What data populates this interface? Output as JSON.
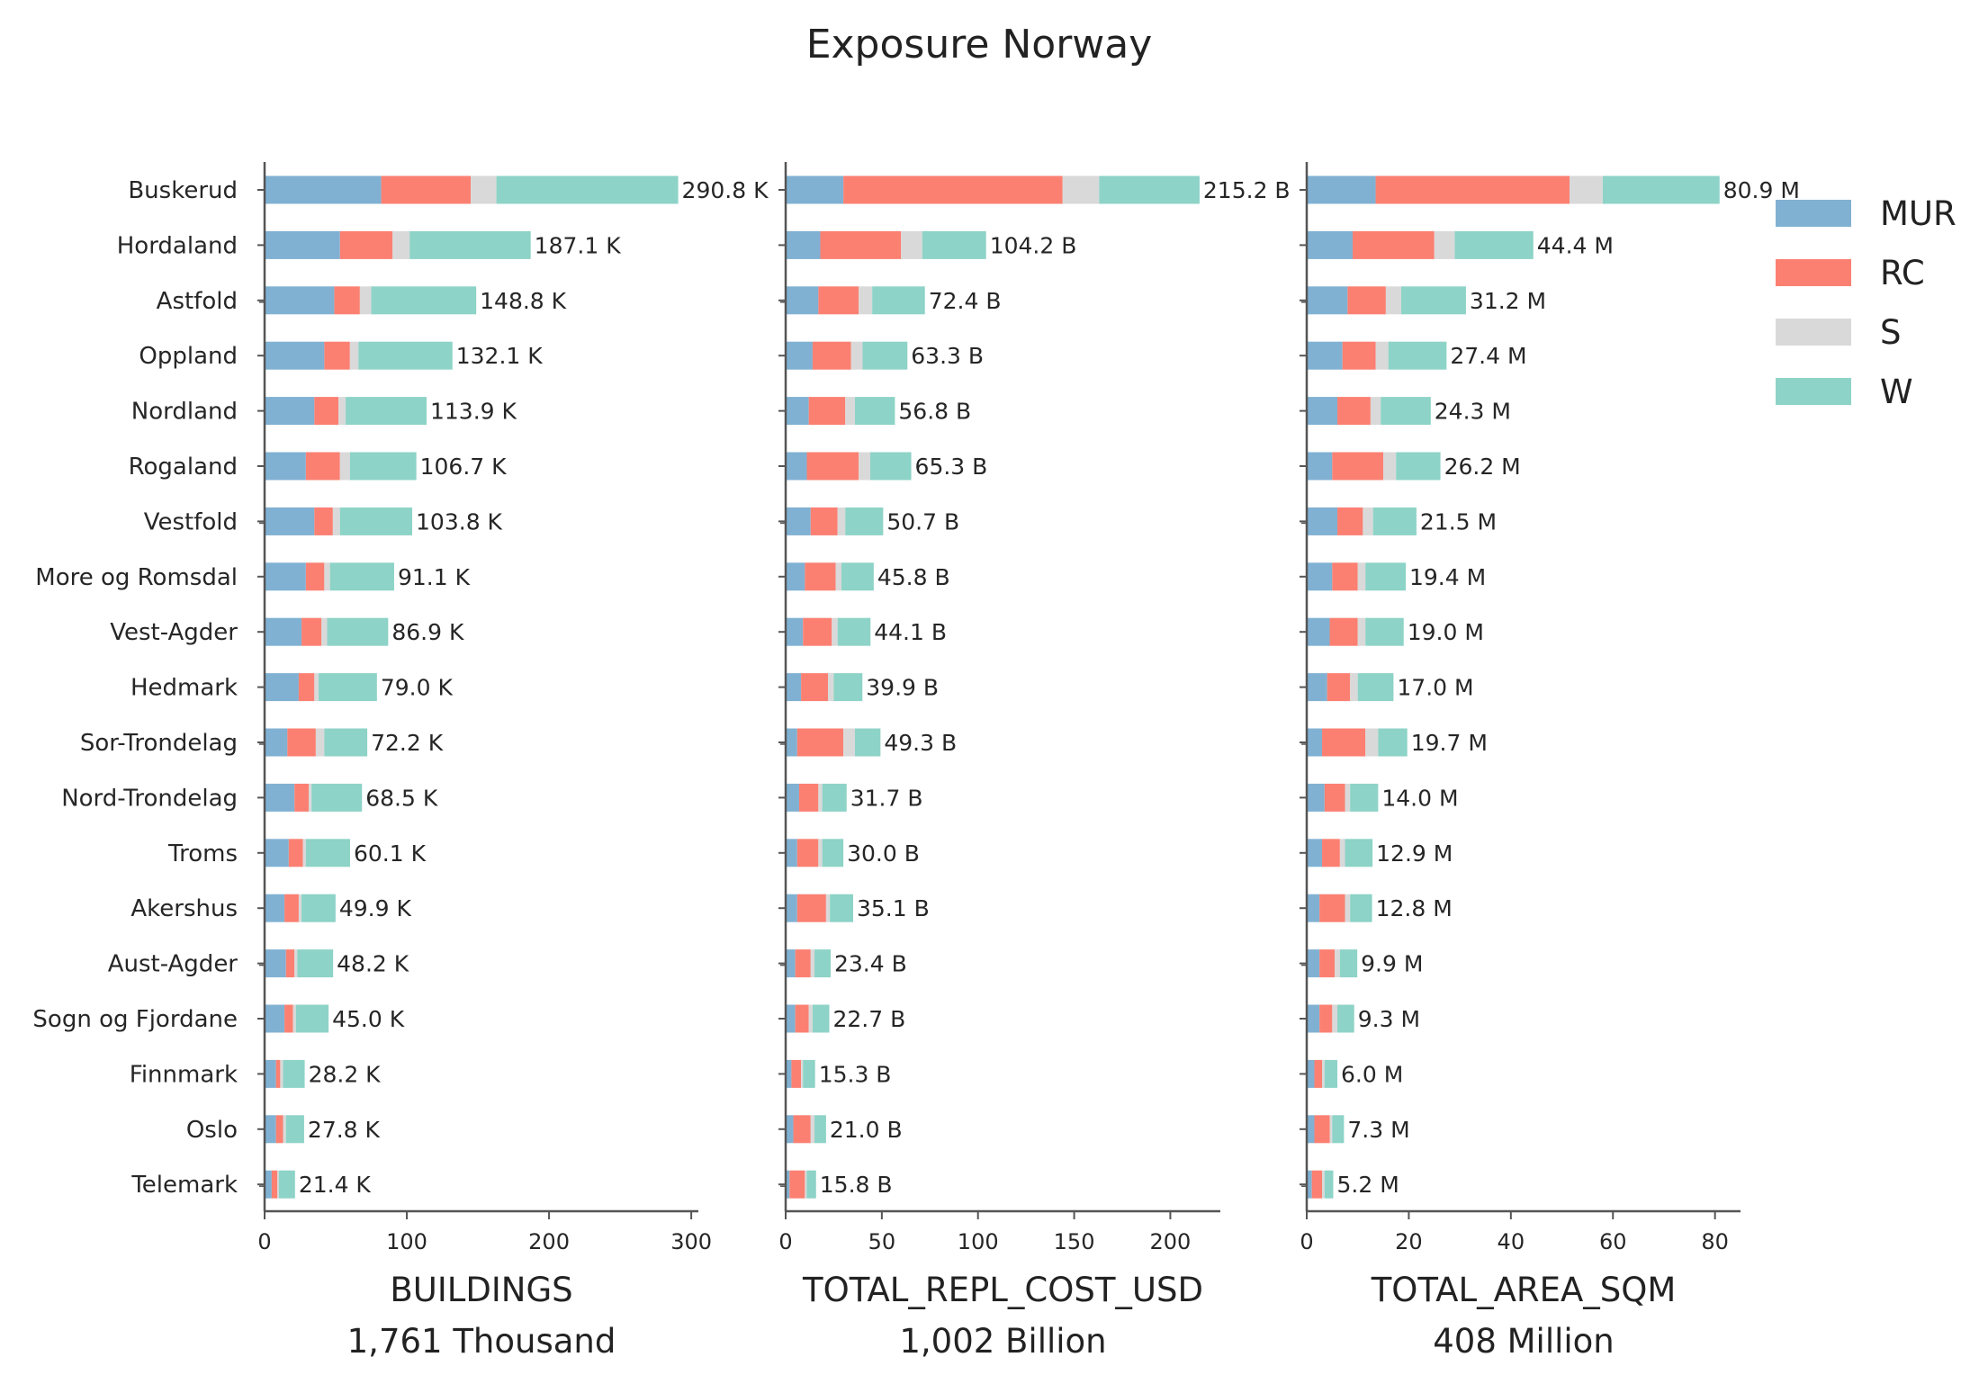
{
  "chart_data": {
    "type": "bar",
    "orientation": "horizontal",
    "stacked": true,
    "title": "Exposure Norway",
    "legend": {
      "placement": "top-right",
      "entries": [
        "MUR",
        "RC",
        "S",
        "W"
      ]
    },
    "colors": {
      "MUR": "#80b1d3",
      "RC": "#fb8072",
      "S": "#d9d9d9",
      "W": "#8dd3c7"
    },
    "grid": false,
    "categories": [
      "Buskerud",
      "Hordaland",
      "Astfold",
      "Oppland",
      "Nordland",
      "Rogaland",
      "Vestfold",
      "More og Romsdal",
      "Vest-Agder",
      "Hedmark",
      "Sor-Trondelag",
      "Nord-Trondelag",
      "Troms",
      "Akershus",
      "Aust-Agder",
      "Sogn og Fjordane",
      "Finnmark",
      "Oslo",
      "Telemark"
    ],
    "panels": [
      {
        "xlabel": "BUILDINGS",
        "subtitle": "1,761 Thousand",
        "xlim": [
          0,
          305
        ],
        "xticks": [
          0,
          100,
          200,
          300
        ],
        "series": [
          {
            "name": "MUR",
            "values": [
              82,
              53,
              49,
              42,
              35,
              29,
              35,
              29,
              26,
              24,
              16,
              21,
              17,
              14,
              15,
              14,
              8,
              8,
              5
            ]
          },
          {
            "name": "RC",
            "values": [
              63,
              37,
              18,
              18,
              17,
              24,
              13,
              13,
              14,
              11,
              20,
              10,
              10,
              10,
              6,
              6,
              3,
              5,
              4
            ]
          },
          {
            "name": "S",
            "values": [
              18,
              12,
              8,
              6,
              5,
              7,
              5,
              4,
              4,
              3,
              6,
              2,
              2,
              2,
              2,
              2,
              2,
              2,
              1
            ]
          },
          {
            "name": "W",
            "values": [
              127.8,
              85.1,
              73.8,
              66.1,
              56.9,
              46.7,
              50.8,
              45.1,
              42.9,
              41.0,
              30.2,
              35.5,
              31.1,
              23.9,
              25.2,
              23.0,
              15.2,
              12.8,
              11.4
            ]
          }
        ],
        "labels": [
          "290.8 K",
          "187.1 K",
          "148.8 K",
          "132.1 K",
          "113.9 K",
          "106.7 K",
          "103.8 K",
          "91.1 K",
          "86.9 K",
          "79.0 K",
          "72.2 K",
          "68.5 K",
          "60.1 K",
          "49.9 K",
          "48.2 K",
          "45.0 K",
          "28.2 K",
          "27.8 K",
          "21.4 K"
        ]
      },
      {
        "xlabel": "TOTAL_REPL_COST_USD",
        "subtitle": "1,002 Billion",
        "xlim": [
          0,
          226
        ],
        "xticks": [
          0,
          50,
          100,
          150,
          200
        ],
        "series": [
          {
            "name": "MUR",
            "values": [
              30,
              18,
              17,
              14,
              12,
              11,
              13,
              10,
              9,
              8,
              6,
              7,
              6,
              6,
              5,
              5,
              3,
              4,
              2
            ]
          },
          {
            "name": "RC",
            "values": [
              114,
              42,
              21,
              20,
              19,
              27,
              14,
              16,
              15,
              14,
              24,
              10,
              11,
              15,
              8,
              7,
              5,
              9,
              8
            ]
          },
          {
            "name": "S",
            "values": [
              19,
              11,
              7,
              6,
              5,
              6,
              4,
              3,
              3,
              3,
              6,
              2,
              2,
              2,
              2,
              2,
              1,
              2,
              1
            ]
          },
          {
            "name": "W",
            "values": [
              52.2,
              33.2,
              27.4,
              23.3,
              20.8,
              21.3,
              19.7,
              16.8,
              17.1,
              14.9,
              13.3,
              12.7,
              11.0,
              12.1,
              8.4,
              8.7,
              6.3,
              6.0,
              4.8
            ]
          }
        ],
        "labels": [
          "215.2 B",
          "104.2 B",
          "72.4 B",
          "63.3 B",
          "56.8 B",
          "65.3 B",
          "50.7 B",
          "45.8 B",
          "44.1 B",
          "39.9 B",
          "49.3 B",
          "31.7 B",
          "30.0 B",
          "35.1 B",
          "23.4 B",
          "22.7 B",
          "15.3 B",
          "21.0 B",
          "15.8 B"
        ]
      },
      {
        "xlabel": "TOTAL_AREA_SQM",
        "subtitle": "408 Million",
        "xlim": [
          0,
          85
        ],
        "xticks": [
          0,
          20,
          40,
          60,
          80
        ],
        "series": [
          {
            "name": "MUR",
            "values": [
              13.5,
              9,
              8,
              7,
              6,
              5,
              6,
              5,
              4.5,
              4,
              3,
              3.5,
              3,
              2.5,
              2.5,
              2.5,
              1.5,
              1.5,
              1
            ]
          },
          {
            "name": "RC",
            "values": [
              38,
              16,
              7.5,
              6.5,
              6.5,
              10,
              5,
              5,
              5.5,
              4.5,
              8.5,
              4,
              3.5,
              5,
              3,
              2.5,
              1.5,
              3,
              2
            ]
          },
          {
            "name": "S",
            "values": [
              6.5,
              4,
              3,
              2.5,
              2,
              2.5,
              2,
              1.5,
              1.5,
              1.5,
              2.5,
              1,
              1,
              1,
              1,
              1,
              0.5,
              0.5,
              0.5
            ]
          },
          {
            "name": "W",
            "values": [
              22.9,
              15.4,
              12.7,
              11.4,
              9.8,
              8.7,
              8.5,
              7.9,
              7.5,
              7.0,
              5.7,
              5.5,
              5.4,
              4.3,
              3.4,
              3.3,
              2.5,
              2.3,
              1.7
            ]
          }
        ],
        "labels": [
          "80.9 M",
          "44.4 M",
          "31.2 M",
          "27.4 M",
          "24.3 M",
          "26.2 M",
          "21.5 M",
          "19.4 M",
          "19.0 M",
          "17.0 M",
          "19.7 M",
          "14.0 M",
          "12.9 M",
          "12.8 M",
          "9.9 M",
          "9.3 M",
          "6.0 M",
          "7.3 M",
          "5.2 M"
        ]
      }
    ]
  }
}
